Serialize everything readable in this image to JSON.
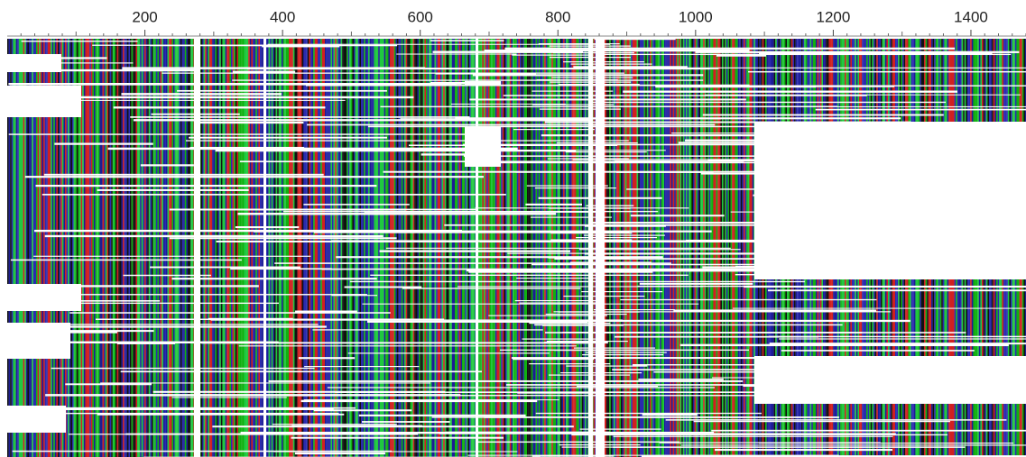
{
  "ruler": {
    "xlim": [
      0,
      1480
    ],
    "ticks": [
      200,
      400,
      600,
      800,
      1000,
      1200,
      1400
    ]
  }
}
